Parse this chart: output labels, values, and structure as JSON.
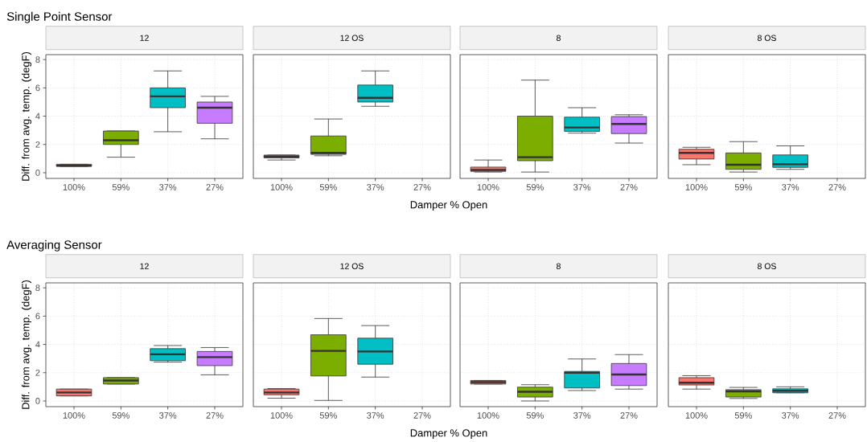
{
  "chart_data": [
    {
      "type": "box",
      "title": "12",
      "annotations": [
        "Single Point Sensor"
      ],
      "ylabel": "Diff. from avg. temp. (degF)",
      "categories": [
        "100%",
        "59%",
        "37%",
        "27%"
      ],
      "colors": [
        "#f8766d",
        "#7cae00",
        "#00bfc4",
        "#c77cff"
      ],
      "ylim": [
        -0.4,
        8.35
      ],
      "yticks": [
        0,
        2,
        4,
        6,
        8
      ],
      "grid": true,
      "boxes": [
        {
          "low": 0.45,
          "q1": 0.45,
          "median": 0.5,
          "q3": 0.6,
          "high": 0.6
        },
        {
          "low": 1.1,
          "q1": 2.0,
          "median": 2.3,
          "q3": 2.95,
          "high": 2.95
        },
        {
          "low": 2.9,
          "q1": 4.6,
          "median": 5.4,
          "q3": 6.0,
          "high": 7.2
        },
        {
          "low": 2.4,
          "q1": 3.5,
          "median": 4.6,
          "q3": 5.0,
          "high": 5.4
        }
      ]
    },
    {
      "type": "box",
      "title": "12 OS",
      "xlabel": "Damper % Open",
      "categories": [
        "100%",
        "59%",
        "37%",
        "27%"
      ],
      "colors": [
        "#f8766d",
        "#7cae00",
        "#00bfc4",
        "#c77cff"
      ],
      "ylim": [
        -0.4,
        8.35
      ],
      "yticks": [
        0,
        2,
        4,
        6,
        8
      ],
      "grid": true,
      "tick_labels": "x",
      "boxes": [
        {
          "low": 0.9,
          "q1": 1.05,
          "median": 1.15,
          "q3": 1.25,
          "high": 1.25
        },
        {
          "low": 1.2,
          "q1": 1.3,
          "median": 1.4,
          "q3": 2.6,
          "high": 3.8
        },
        {
          "low": 4.7,
          "q1": 5.0,
          "median": 5.3,
          "q3": 6.2,
          "high": 7.2
        },
        null
      ]
    },
    {
      "type": "box",
      "title": "8",
      "categories": [
        "100%",
        "59%",
        "37%",
        "27%"
      ],
      "colors": [
        "#f8766d",
        "#7cae00",
        "#00bfc4",
        "#c77cff"
      ],
      "ylim": [
        -0.4,
        8.35
      ],
      "yticks": [
        0,
        2,
        4,
        6,
        8
      ],
      "grid": true,
      "tick_labels": "x",
      "boxes": [
        {
          "low": 0.05,
          "q1": 0.1,
          "median": 0.2,
          "q3": 0.4,
          "high": 0.9
        },
        {
          "low": 0.05,
          "q1": 0.85,
          "median": 1.1,
          "q3": 4.0,
          "high": 6.55
        },
        {
          "low": 2.8,
          "q1": 2.93,
          "median": 3.2,
          "q3": 3.93,
          "high": 4.6
        },
        {
          "low": 2.1,
          "q1": 2.77,
          "median": 3.45,
          "q3": 3.97,
          "high": 4.1
        }
      ]
    },
    {
      "type": "box",
      "title": "8 OS",
      "categories": [
        "100%",
        "59%",
        "37%",
        "27%"
      ],
      "colors": [
        "#f8766d",
        "#7cae00",
        "#00bfc4",
        "#c77cff"
      ],
      "ylim": [
        -0.4,
        8.35
      ],
      "yticks": [
        0,
        2,
        4,
        6,
        8
      ],
      "grid": true,
      "tick_labels": "x",
      "boxes": [
        {
          "low": 0.57,
          "q1": 0.97,
          "median": 1.4,
          "q3": 1.66,
          "high": 1.8
        },
        {
          "low": 0.05,
          "q1": 0.24,
          "median": 0.57,
          "q3": 1.4,
          "high": 2.2
        },
        {
          "low": 0.24,
          "q1": 0.38,
          "median": 0.6,
          "q3": 1.26,
          "high": 1.9
        },
        null
      ]
    },
    {
      "type": "box",
      "title": "12",
      "annotations": [
        "Averaging Sensor"
      ],
      "ylabel": "Diff. from avg. temp. (degF)",
      "categories": [
        "100%",
        "59%",
        "37%",
        "27%"
      ],
      "colors": [
        "#f8766d",
        "#7cae00",
        "#00bfc4",
        "#c77cff"
      ],
      "ylim": [
        -0.4,
        8.35
      ],
      "yticks": [
        0,
        2,
        4,
        6,
        8
      ],
      "grid": true,
      "boxes": [
        {
          "low": 0.36,
          "q1": 0.36,
          "median": 0.6,
          "q3": 0.84,
          "high": 0.84
        },
        {
          "low": 1.2,
          "q1": 1.2,
          "median": 1.45,
          "q3": 1.65,
          "high": 1.65
        },
        {
          "low": 2.75,
          "q1": 2.85,
          "median": 3.3,
          "q3": 3.7,
          "high": 3.92
        },
        {
          "low": 1.85,
          "q1": 2.5,
          "median": 3.1,
          "q3": 3.5,
          "high": 3.78
        }
      ]
    },
    {
      "type": "box",
      "title": "12 OS",
      "xlabel": "Damper % Open",
      "categories": [
        "100%",
        "59%",
        "37%",
        "27%"
      ],
      "colors": [
        "#f8766d",
        "#7cae00",
        "#00bfc4",
        "#c77cff"
      ],
      "ylim": [
        -0.4,
        8.35
      ],
      "yticks": [
        0,
        2,
        4,
        6,
        8
      ],
      "grid": true,
      "tick_labels": "x",
      "boxes": [
        {
          "low": 0.2,
          "q1": 0.44,
          "median": 0.6,
          "q3": 0.84,
          "high": 0.88
        },
        {
          "low": 0.04,
          "q1": 1.77,
          "median": 3.54,
          "q3": 4.68,
          "high": 5.83
        },
        {
          "low": 1.69,
          "q1": 2.6,
          "median": 3.5,
          "q3": 4.44,
          "high": 5.33
        },
        null
      ]
    },
    {
      "type": "box",
      "title": "8",
      "categories": [
        "100%",
        "59%",
        "37%",
        "27%"
      ],
      "colors": [
        "#f8766d",
        "#7cae00",
        "#00bfc4",
        "#c77cff"
      ],
      "ylim": [
        -0.4,
        8.35
      ],
      "yticks": [
        0,
        2,
        4,
        6,
        8
      ],
      "grid": true,
      "tick_labels": "x",
      "boxes": [
        {
          "low": 1.2,
          "q1": 1.2,
          "median": 1.33,
          "q3": 1.45,
          "high": 1.45
        },
        {
          "low": 0.0,
          "q1": 0.28,
          "median": 0.65,
          "q3": 0.98,
          "high": 1.15
        },
        {
          "low": 0.74,
          "q1": 0.92,
          "median": 2.0,
          "q3": 2.09,
          "high": 2.97
        },
        {
          "low": 0.84,
          "q1": 1.09,
          "median": 1.87,
          "q3": 2.65,
          "high": 3.28
        }
      ]
    },
    {
      "type": "box",
      "title": "8 OS",
      "categories": [
        "100%",
        "59%",
        "37%",
        "27%"
      ],
      "colors": [
        "#f8766d",
        "#7cae00",
        "#00bfc4",
        "#c77cff"
      ],
      "ylim": [
        -0.4,
        8.35
      ],
      "yticks": [
        0,
        2,
        4,
        6,
        8
      ],
      "grid": true,
      "tick_labels": "x",
      "boxes": [
        {
          "low": 0.84,
          "q1": 1.13,
          "median": 1.29,
          "q3": 1.65,
          "high": 1.79
        },
        {
          "low": 0.18,
          "q1": 0.28,
          "median": 0.68,
          "q3": 0.8,
          "high": 0.96
        },
        {
          "low": 0.58,
          "q1": 0.58,
          "median": 0.72,
          "q3": 0.86,
          "high": 1.0
        },
        null
      ]
    }
  ]
}
